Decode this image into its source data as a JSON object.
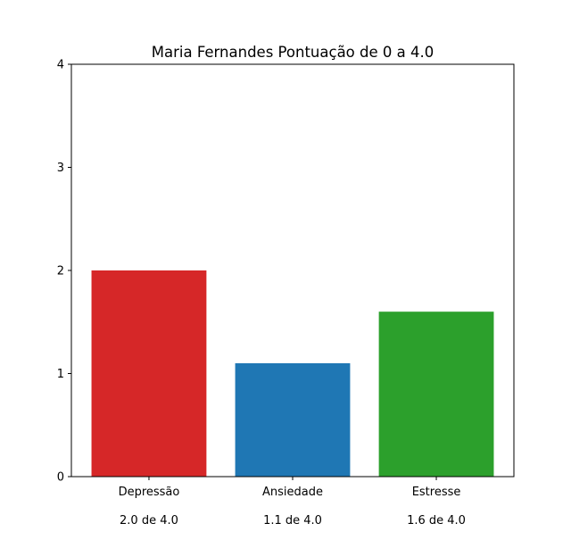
{
  "chart_data": {
    "type": "bar",
    "title": "Maria Fernandes Pontuação de 0 a 4.0",
    "xlabel": "",
    "ylabel": "",
    "ylim": [
      0,
      4
    ],
    "yticks": [
      "0",
      "1",
      "2",
      "3",
      "4"
    ],
    "grid": false,
    "categories": [
      "Depressão",
      "Ansiedade",
      "Estresse"
    ],
    "values": [
      2.0,
      1.1,
      1.6
    ],
    "value_labels": [
      "2.0 de 4.0",
      "1.1 de 4.0",
      "1.6 de 4.0"
    ],
    "colors": [
      "#d62728",
      "#1f77b4",
      "#2ca02c"
    ]
  }
}
